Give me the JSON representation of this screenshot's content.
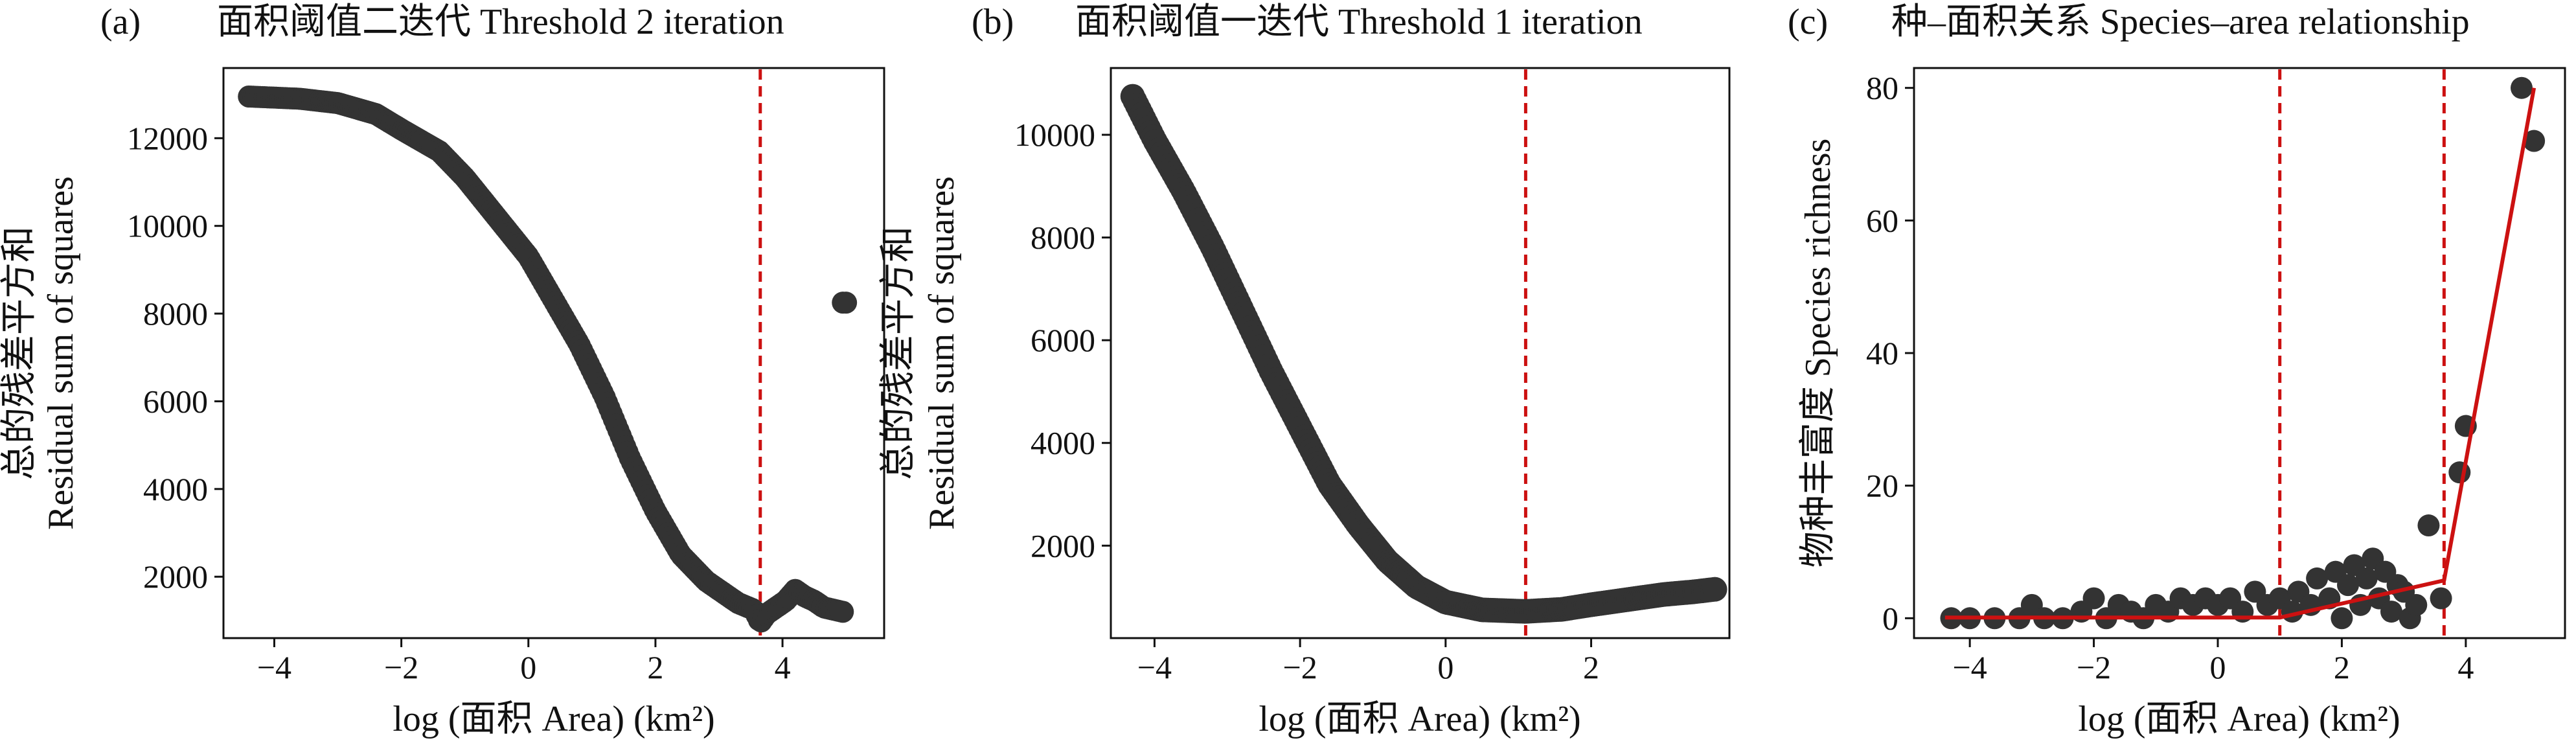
{
  "colors": {
    "point": "#333333",
    "threshold": "#cc1111",
    "fit": "#cc1111",
    "axis": "#111111"
  },
  "chart_data": [
    {
      "type": "scatter",
      "panel": "(a)",
      "title": "面积阈值二迭代 Threshold 2 iteration",
      "xlabel": "log (面积 Area) (km²)",
      "ylabel_cn": "总的残差平方和",
      "ylabel_en": "Residual sum of squares",
      "xlim": [
        -4.8,
        5.6
      ],
      "ylim": [
        600,
        13600
      ],
      "xticks": [
        -4,
        -2,
        0,
        2,
        4
      ],
      "xtick_labels": [
        "−4",
        "−2",
        "0",
        "2",
        "4"
      ],
      "yticks": [
        2000,
        4000,
        6000,
        8000,
        10000,
        12000
      ],
      "ytick_labels": [
        "2000",
        "4000",
        "6000",
        "8000",
        "10000",
        "12000"
      ],
      "threshold_x": [
        3.65
      ],
      "curve": [
        [
          -4.4,
          12950
        ],
        [
          -3.6,
          12900
        ],
        [
          -3.0,
          12800
        ],
        [
          -2.4,
          12550
        ],
        [
          -2.0,
          12200
        ],
        [
          -1.4,
          11700
        ],
        [
          -1.0,
          11100
        ],
        [
          -0.5,
          10200
        ],
        [
          0.0,
          9300
        ],
        [
          0.4,
          8300
        ],
        [
          0.8,
          7300
        ],
        [
          1.2,
          6100
        ],
        [
          1.6,
          4700
        ],
        [
          2.0,
          3500
        ],
        [
          2.4,
          2500
        ],
        [
          2.8,
          1900
        ],
        [
          3.1,
          1600
        ],
        [
          3.3,
          1400
        ],
        [
          3.55,
          1250
        ],
        [
          3.65,
          950
        ],
        [
          3.75,
          1150
        ],
        [
          3.9,
          1300
        ],
        [
          4.05,
          1450
        ],
        [
          4.2,
          1700
        ],
        [
          4.35,
          1550
        ],
        [
          4.5,
          1450
        ],
        [
          4.65,
          1300
        ],
        [
          4.8,
          1250
        ],
        [
          4.95,
          1200
        ]
      ],
      "points": [
        [
          4.95,
          8250
        ],
        [
          5.0,
          8250
        ]
      ]
    },
    {
      "type": "scatter",
      "panel": "(b)",
      "title": "面积阈值一迭代 Threshold 1 iteration",
      "xlabel": "log (面积 Area) (km²)",
      "ylabel_cn": "总的残差平方和",
      "ylabel_en": "Residual sum of squares",
      "xlim": [
        -4.6,
        3.9
      ],
      "ylim": [
        200,
        11300
      ],
      "xticks": [
        -4,
        -2,
        0,
        2
      ],
      "xtick_labels": [
        "−4",
        "−2",
        "0",
        "2"
      ],
      "yticks": [
        2000,
        4000,
        6000,
        8000,
        10000
      ],
      "ytick_labels": [
        "2000",
        "4000",
        "6000",
        "8000",
        "10000"
      ],
      "threshold_x": [
        1.1
      ],
      "curve": [
        [
          -4.3,
          10750
        ],
        [
          -4.0,
          9900
        ],
        [
          -3.6,
          8900
        ],
        [
          -3.2,
          7800
        ],
        [
          -2.8,
          6600
        ],
        [
          -2.4,
          5400
        ],
        [
          -2.0,
          4300
        ],
        [
          -1.6,
          3200
        ],
        [
          -1.2,
          2400
        ],
        [
          -0.8,
          1700
        ],
        [
          -0.4,
          1200
        ],
        [
          0.0,
          900
        ],
        [
          0.5,
          750
        ],
        [
          1.1,
          720
        ],
        [
          1.6,
          760
        ],
        [
          2.0,
          850
        ],
        [
          2.5,
          950
        ],
        [
          3.0,
          1050
        ],
        [
          3.4,
          1100
        ],
        [
          3.7,
          1150
        ]
      ],
      "points": []
    },
    {
      "type": "scatter",
      "panel": "(c)",
      "title": "种–面积关系 Species–area relationship",
      "xlabel": "log (面积 Area) (km²)",
      "ylabel": "物种丰富度 Species richness",
      "xlim": [
        -4.9,
        5.6
      ],
      "ylim": [
        -3,
        83
      ],
      "xticks": [
        -4,
        -2,
        0,
        2,
        4
      ],
      "xtick_labels": [
        "−4",
        "−2",
        "0",
        "2",
        "4"
      ],
      "yticks": [
        0,
        20,
        40,
        60,
        80
      ],
      "ytick_labels": [
        "0",
        "20",
        "40",
        "60",
        "80"
      ],
      "threshold_x": [
        1.0,
        3.65
      ],
      "fit_line": [
        [
          -4.4,
          0.1
        ],
        [
          1.0,
          0.1
        ],
        [
          3.65,
          5.7
        ],
        [
          5.1,
          80
        ]
      ],
      "points": [
        [
          -4.3,
          0
        ],
        [
          -4.0,
          0
        ],
        [
          -3.6,
          0
        ],
        [
          -3.2,
          0
        ],
        [
          -3.0,
          2
        ],
        [
          -2.8,
          0
        ],
        [
          -2.5,
          0
        ],
        [
          -2.2,
          1
        ],
        [
          -2.0,
          3
        ],
        [
          -1.8,
          0
        ],
        [
          -1.6,
          2
        ],
        [
          -1.4,
          1
        ],
        [
          -1.2,
          0
        ],
        [
          -1.0,
          2
        ],
        [
          -0.8,
          1
        ],
        [
          -0.6,
          3
        ],
        [
          -0.4,
          2
        ],
        [
          -0.2,
          3
        ],
        [
          0.0,
          2
        ],
        [
          0.2,
          3
        ],
        [
          0.4,
          1
        ],
        [
          0.6,
          4
        ],
        [
          0.8,
          2
        ],
        [
          1.0,
          3
        ],
        [
          1.2,
          1
        ],
        [
          1.3,
          4
        ],
        [
          1.5,
          2
        ],
        [
          1.6,
          6
        ],
        [
          1.8,
          3
        ],
        [
          1.9,
          7
        ],
        [
          2.0,
          0
        ],
        [
          2.1,
          5
        ],
        [
          2.2,
          8
        ],
        [
          2.3,
          2
        ],
        [
          2.4,
          6
        ],
        [
          2.5,
          9
        ],
        [
          2.6,
          3
        ],
        [
          2.7,
          7
        ],
        [
          2.8,
          1
        ],
        [
          2.9,
          5
        ],
        [
          3.0,
          4
        ],
        [
          3.1,
          0
        ],
        [
          3.2,
          2
        ],
        [
          3.4,
          14
        ],
        [
          3.6,
          3
        ],
        [
          3.9,
          22
        ],
        [
          4.0,
          29
        ],
        [
          4.9,
          80
        ],
        [
          5.1,
          72
        ]
      ]
    }
  ]
}
